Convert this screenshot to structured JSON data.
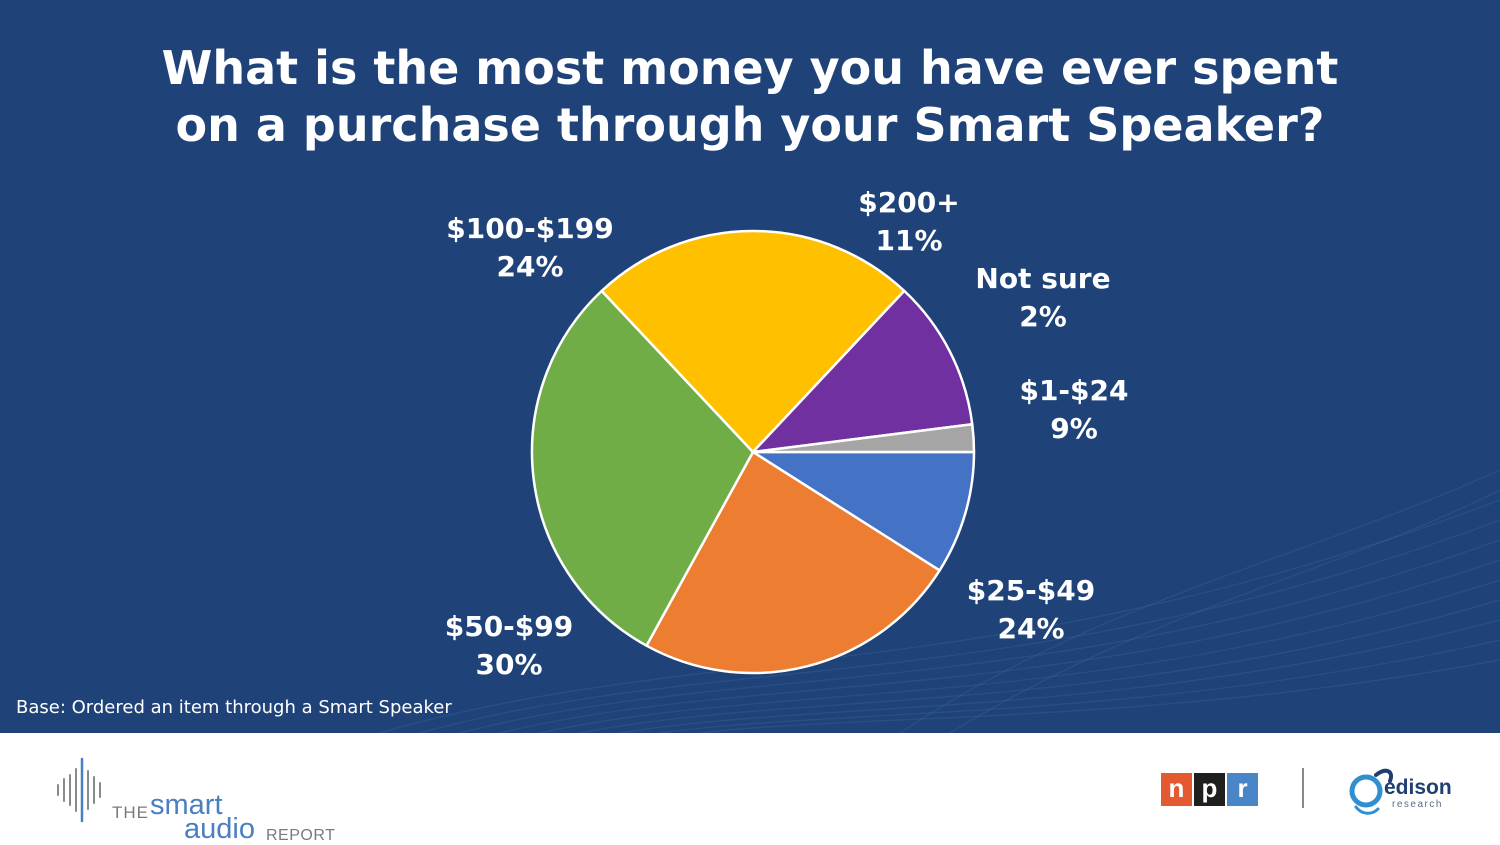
{
  "title_line1": "What is the most money you have ever spent",
  "title_line2": "on a purchase through your Smart Speaker?",
  "base_note": "Base: Ordered an item through a Smart Speaker",
  "colors": {
    "background": "#1f4379",
    "$1-$24": "#4472c4",
    "$25-$49": "#ed7d31",
    "$50-$99": "#70ad47",
    "$100-$199": "#ffc000",
    "$200+": "#7030a0",
    "Not sure": "#a5a5a5"
  },
  "chart_data": {
    "type": "pie",
    "title": "What is the most money you have ever spent on a purchase through your Smart Speaker?",
    "start": "3 o'clock, clockwise",
    "slices": [
      {
        "label": "$1-$24",
        "value": 9,
        "pct_label": "9%"
      },
      {
        "label": "$25-$49",
        "value": 24,
        "pct_label": "24%"
      },
      {
        "label": "$50-$99",
        "value": 30,
        "pct_label": "30%"
      },
      {
        "label": "$100-$199",
        "value": 24,
        "pct_label": "24%"
      },
      {
        "label": "$200+",
        "value": 11,
        "pct_label": "11%"
      },
      {
        "label": "Not sure",
        "value": 2,
        "pct_label": "2%"
      }
    ]
  },
  "footer": {
    "smart_audio_logo": {
      "the": "THE",
      "smart": "smart",
      "audio": "audio",
      "report": "REPORT"
    },
    "npr_logo": {
      "letters": [
        "n",
        "p",
        "r"
      ],
      "colors": [
        "#e4592f",
        "#1f1f1f",
        "#4a86c7"
      ]
    },
    "edison_logo": {
      "name": "edison",
      "sub": "research"
    }
  }
}
